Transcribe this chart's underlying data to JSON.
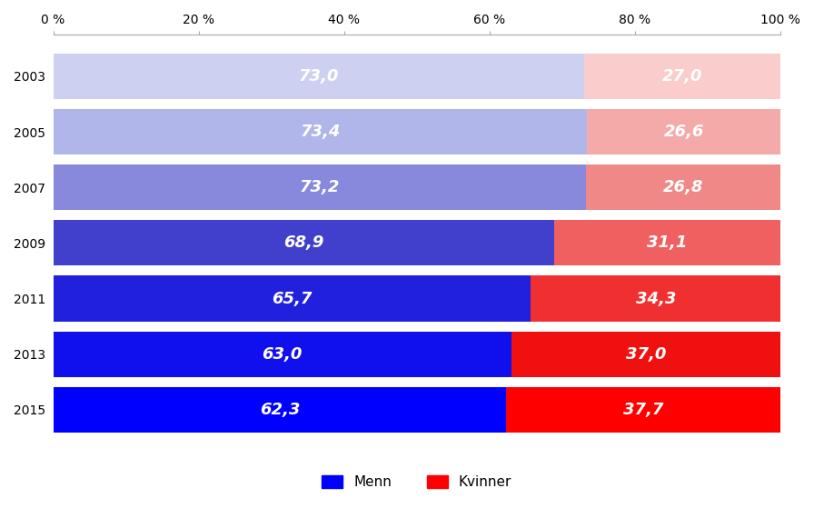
{
  "years": [
    "2003",
    "2005",
    "2007",
    "2009",
    "2011",
    "2013",
    "2015"
  ],
  "menn": [
    73.0,
    73.4,
    73.2,
    68.9,
    65.7,
    63.0,
    62.3
  ],
  "kvinner": [
    27.0,
    26.6,
    26.8,
    31.1,
    34.3,
    37.0,
    37.7
  ],
  "menn_colors": [
    "#cdd0f0",
    "#b0b5ea",
    "#8888dd",
    "#4040cc",
    "#2020dd",
    "#1010ee",
    "#0000ff"
  ],
  "kvinner_colors": [
    "#facccc",
    "#f5aaaa",
    "#f08888",
    "#f06060",
    "#f03030",
    "#f01010",
    "#ff0000"
  ],
  "label_color": "#ffffff",
  "legend_menn": "Menn",
  "legend_kvinner": "Kvinner",
  "legend_menn_color": "#0000ff",
  "legend_kvinner_color": "#ff0000",
  "bar_height": 0.82,
  "xlim": [
    0,
    100
  ],
  "xticks": [
    0,
    20,
    40,
    60,
    80,
    100
  ],
  "xtick_labels": [
    "0 %",
    "20 %",
    "40 %",
    "60 %",
    "80 %",
    "100 %"
  ],
  "label_fontsize": 13,
  "tick_fontsize": 10,
  "legend_fontsize": 11,
  "spine_color": "#aaaaaa"
}
